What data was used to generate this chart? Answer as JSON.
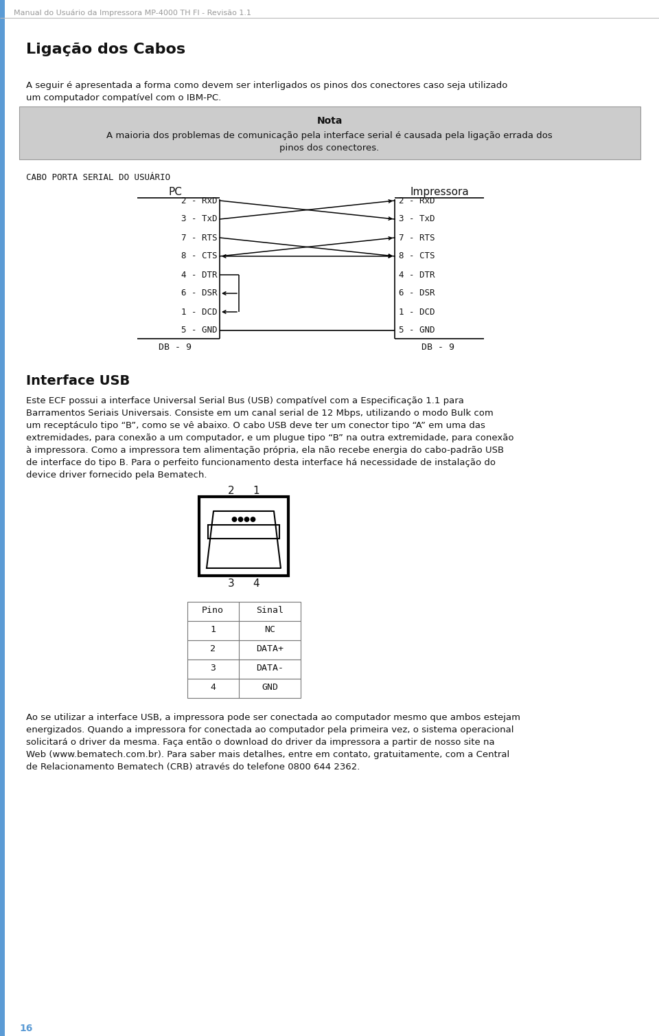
{
  "bg_color": "#ffffff",
  "header_text": "Manual do Usuário da Impressora MP-4000 TH FI - Revisão 1.1",
  "header_color": "#999999",
  "title": "Ligação dos Cabos",
  "intro_line1": "A seguir é apresentada a forma como devem ser interligados os pinos dos conectores caso seja utilizado",
  "intro_line2": "um computador compatível com o IBM-PC.",
  "nota_title": "Nota",
  "nota_line1": "A maioria dos problemas de comunicação pela interface serial é causada pela ligação errada dos",
  "nota_line2": "pinos dos conectores.",
  "nota_bg": "#cccccc",
  "cable_label": "CABO PORTA SERIAL DO USUÁRIO",
  "pc_label": "PC",
  "impressora_label": "Impressora",
  "pc_pins": [
    "2 - RxD",
    "3 - TxD",
    "7 - RTS",
    "8 - CTS",
    "4 - DTR",
    "6 - DSR",
    "1 - DCD",
    "5 - GND"
  ],
  "imp_pins": [
    "2 - RxD",
    "3 - TxD",
    "7 - RTS",
    "8 - CTS",
    "4 - DTR",
    "6 - DSR",
    "1 - DCD",
    "5 - GND"
  ],
  "db9_label": "DB - 9",
  "usb_title": "Interface USB",
  "usb_para_lines": [
    "Este ECF possui a interface Universal Serial Bus (USB) compatível com a Especificação 1.1 para",
    "Barramentos Seriais Universais. Consiste em um canal serial de 12 Mbps, utilizando o modo Bulk com",
    "um receptáculo tipo “B”, como se vê abaixo. O cabo USB deve ter um conector tipo “A” em uma das",
    "extremidades, para conexão a um computador, e um plugue tipo “B” na outra extremidade, para conexão",
    "à impressora. Como a impressora tem alimentação própria, ela não recebe energia do cabo-padrão USB",
    "de interface do tipo B. Para o perfeito funcionamento desta interface há necessidade de instalação do",
    "device driver fornecido pela Bematech."
  ],
  "table_headers": [
    "Pino",
    "Sinal"
  ],
  "table_rows": [
    [
      "1",
      "NC"
    ],
    [
      "2",
      "DATA+"
    ],
    [
      "3",
      "DATA-"
    ],
    [
      "4",
      "GND"
    ]
  ],
  "usb_para2_lines": [
    "Ao se utilizar a interface USB, a impressora pode ser conectada ao computador mesmo que ambos estejam",
    "energizados. Quando a impressora for conectada ao computador pela primeira vez, o sistema operacional",
    "solicitará o driver da mesma. Faça então o download do driver da impressora a partir de nosso site na",
    "Web (www.bematech.com.br). Para saber mais detalhes, entre em contato, gratuitamente, com a Central",
    "de Relacionamento Bematech (CRB) através do telefone 0800 644 2362."
  ],
  "page_num": "16",
  "text_color": "#111111",
  "mono_font": "monospace",
  "left_bar_color": "#5b9bd5"
}
